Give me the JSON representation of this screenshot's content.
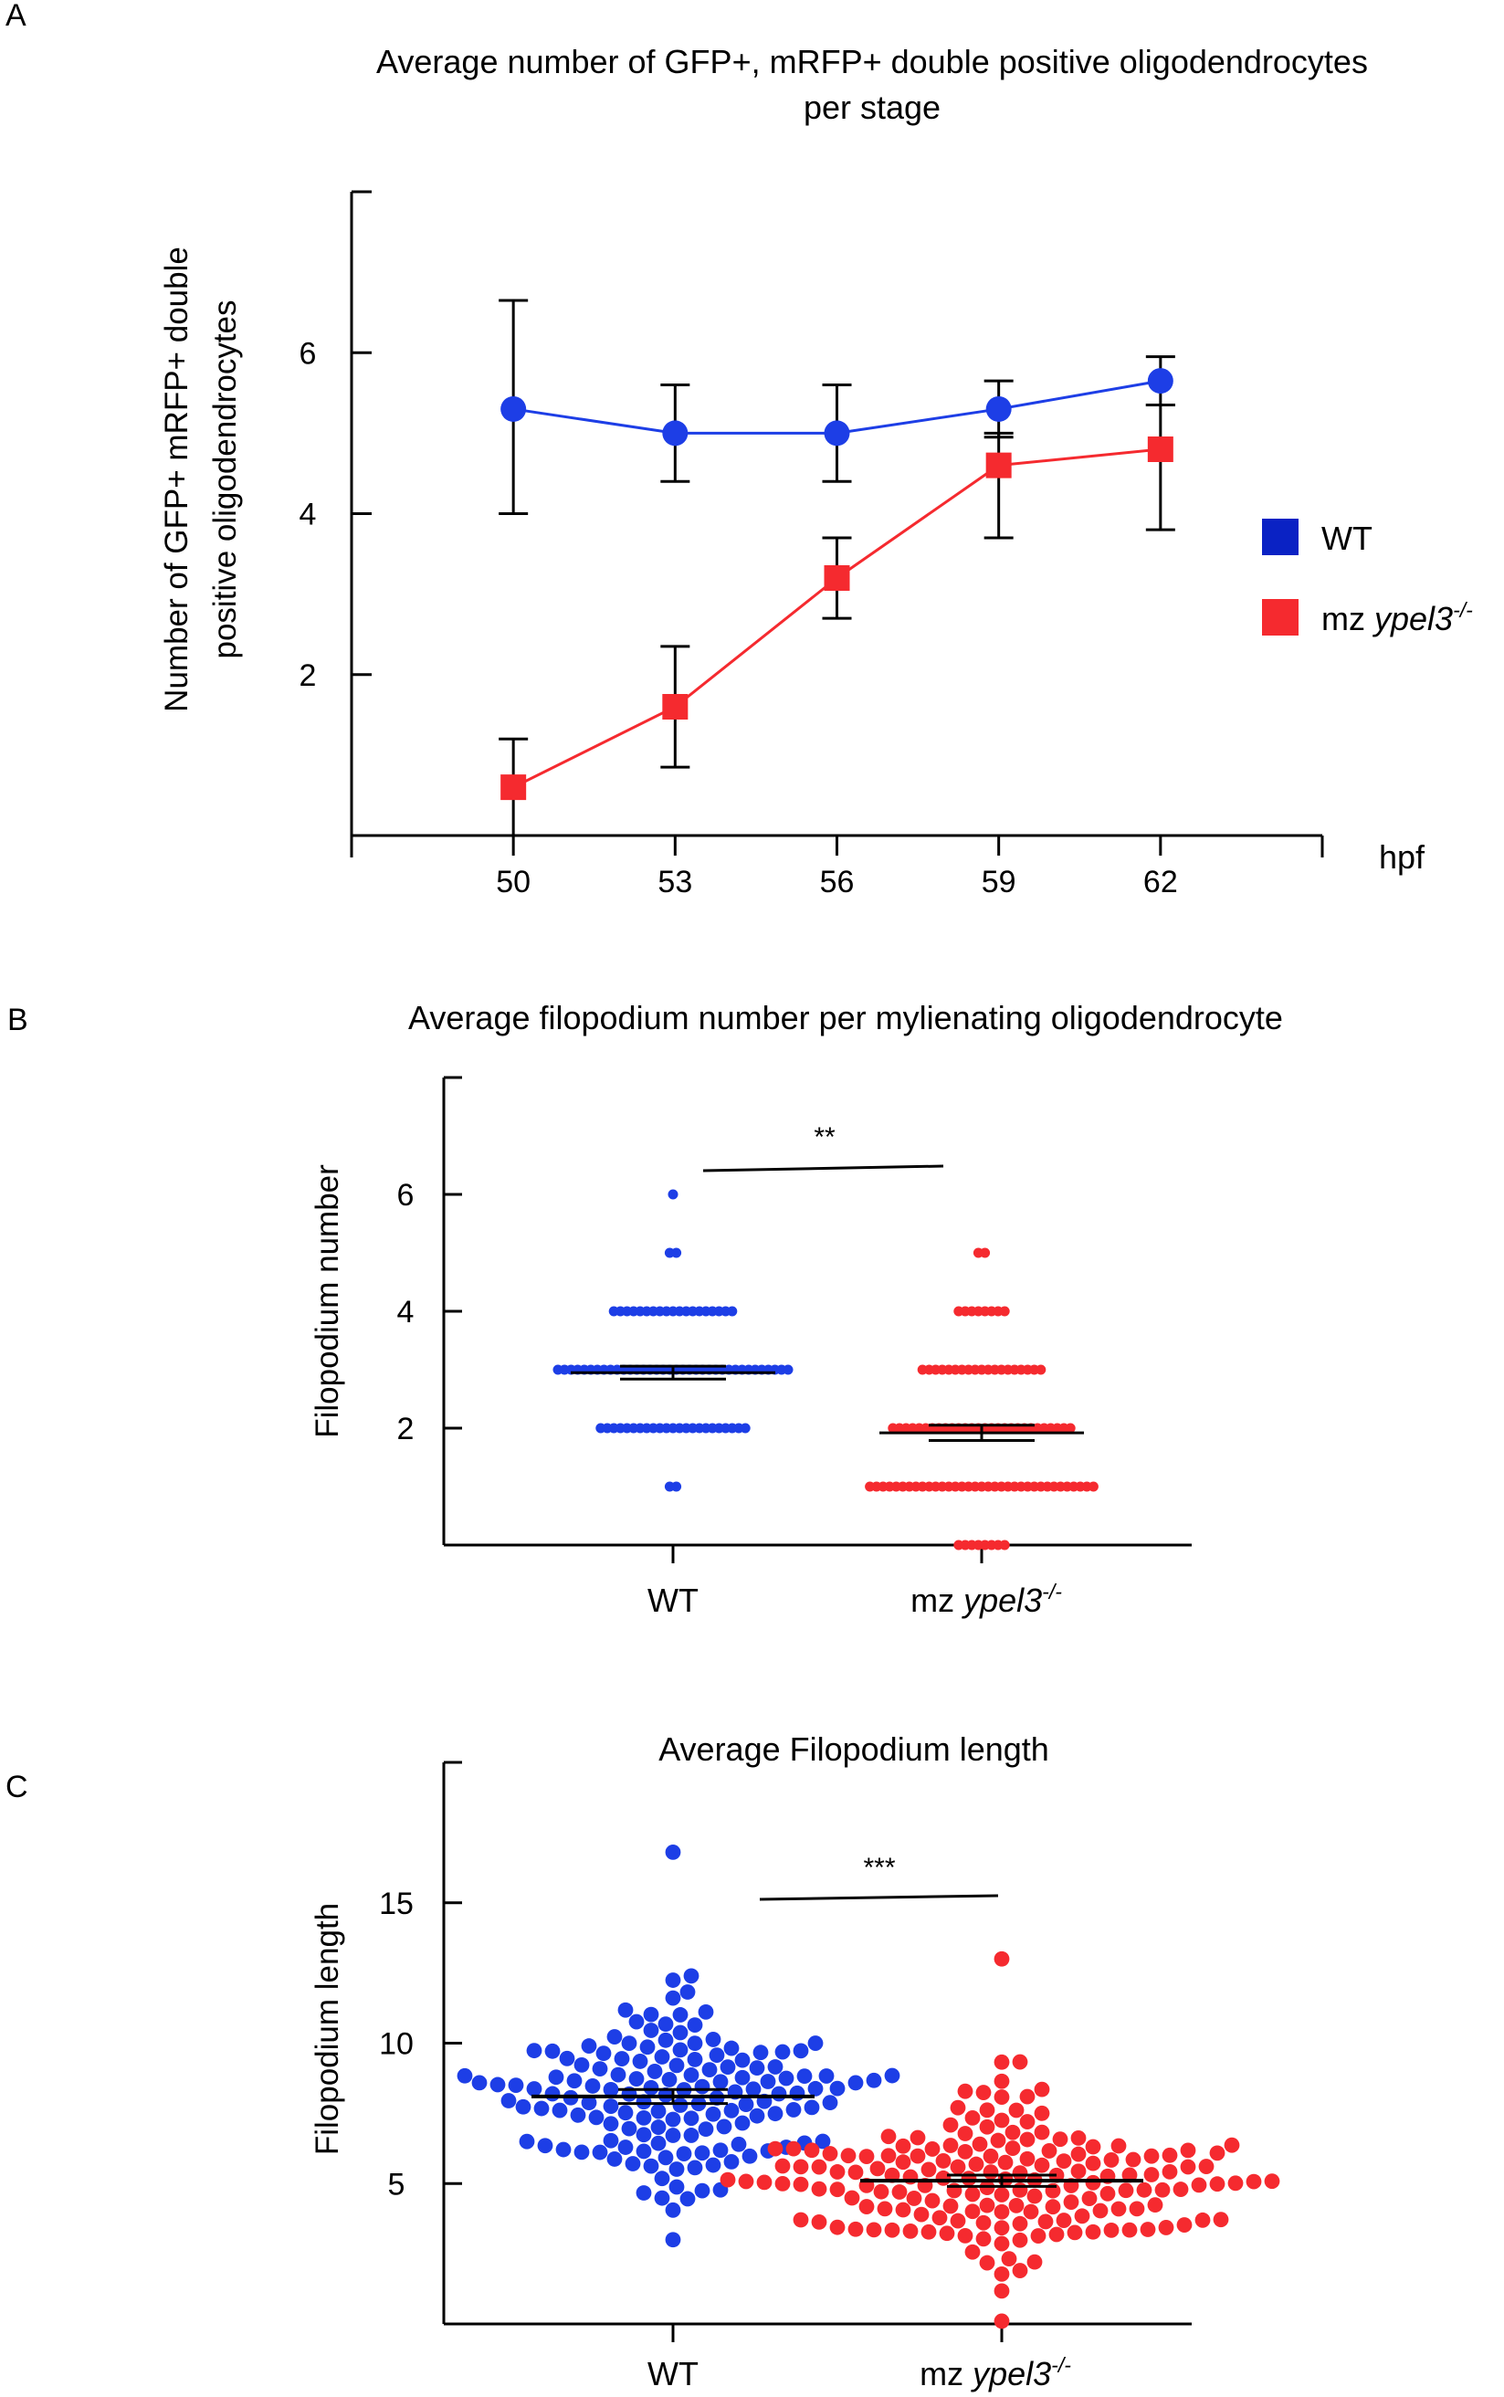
{
  "colors": {
    "wt": "#1d3ee6",
    "mz": "#f52a2f",
    "wt_legend": "#0a22c4",
    "axis": "#000000"
  },
  "panels": {
    "A": {
      "letter": "A",
      "title_line1": "Average number of GFP+, mRFP+ double positive oligodendrocytes",
      "title_line2": "per stage",
      "ylabel_line1": "Number of GFP+ mRFP+ double",
      "ylabel_line2": "positive  oligodendrocytes",
      "xunit": "hpf",
      "legend": {
        "wt": "WT",
        "mz_prefix": "mz ",
        "mz_gene": "ypel3",
        "mz_sup": "-/-"
      }
    },
    "B": {
      "letter": "B",
      "title": "Average filopodium number per mylienating oligodendrocyte",
      "ylabel": "Filopodium number",
      "significance": "**",
      "cat_wt": "WT",
      "cat_mz_prefix": "mz ",
      "cat_mz_gene": "ypel3",
      "cat_mz_sup": "-/-"
    },
    "C": {
      "letter": "C",
      "title": "Average Filopodium length",
      "ylabel": "Filopodium length",
      "significance": "***",
      "cat_wt": "WT",
      "cat_mz_prefix": "mz ",
      "cat_mz_gene": "ypel3",
      "cat_mz_sup": "-/-"
    }
  },
  "chart_data": [
    {
      "panel": "A",
      "type": "line",
      "x": [
        50,
        53,
        56,
        59,
        62
      ],
      "xticks": [
        "50",
        "53",
        "56",
        "59",
        "62"
      ],
      "xlim": [
        47,
        65
      ],
      "ylim": [
        0,
        8
      ],
      "yticks": [
        "2",
        "4",
        "6"
      ],
      "series": [
        {
          "name": "WT",
          "values": [
            5.3,
            5.0,
            5.0,
            5.3,
            5.65
          ],
          "err_low": [
            4.0,
            4.4,
            4.4,
            4.95,
            5.35
          ],
          "err_high": [
            6.65,
            5.6,
            5.6,
            5.65,
            5.95
          ]
        },
        {
          "name": "mz ypel3-/-",
          "values": [
            0.6,
            1.6,
            3.2,
            4.6,
            4.8
          ],
          "err_low": [
            0.0,
            0.85,
            2.7,
            3.7,
            3.8
          ],
          "err_high": [
            1.2,
            2.35,
            3.7,
            5.0,
            5.35
          ]
        }
      ],
      "legend": "right"
    },
    {
      "panel": "B",
      "type": "scatter",
      "categories": [
        "WT",
        "mz ypel3-/-"
      ],
      "ylim": [
        0,
        8
      ],
      "yticks": [
        "2",
        "4",
        "6"
      ],
      "series": [
        {
          "name": "WT",
          "counts": {
            "1": 2,
            "2": 23,
            "3": 36,
            "4": 19,
            "5": 2,
            "6": 1
          },
          "mean": 2.95,
          "sem": 0.11
        },
        {
          "name": "mz ypel3-/-",
          "counts": {
            "0": 8,
            "1": 35,
            "2": 28,
            "3": 19,
            "4": 8,
            "5": 2
          },
          "mean": 1.92,
          "sem": 0.13
        }
      ]
    },
    {
      "panel": "C",
      "type": "scatter",
      "categories": [
        "WT",
        "mz ypel3-/-"
      ],
      "ylim": [
        0,
        20
      ],
      "yticks": [
        "5",
        "10",
        "15"
      ],
      "series": [
        {
          "name": "WT",
          "n": 150,
          "min": 3.0,
          "max": 16.8,
          "mean": 8.1,
          "sem": 0.25
        },
        {
          "name": "mz ypel3-/-",
          "n": 175,
          "min": 0.1,
          "max": 13.0,
          "mean": 5.1,
          "sem": 0.2
        }
      ]
    }
  ]
}
